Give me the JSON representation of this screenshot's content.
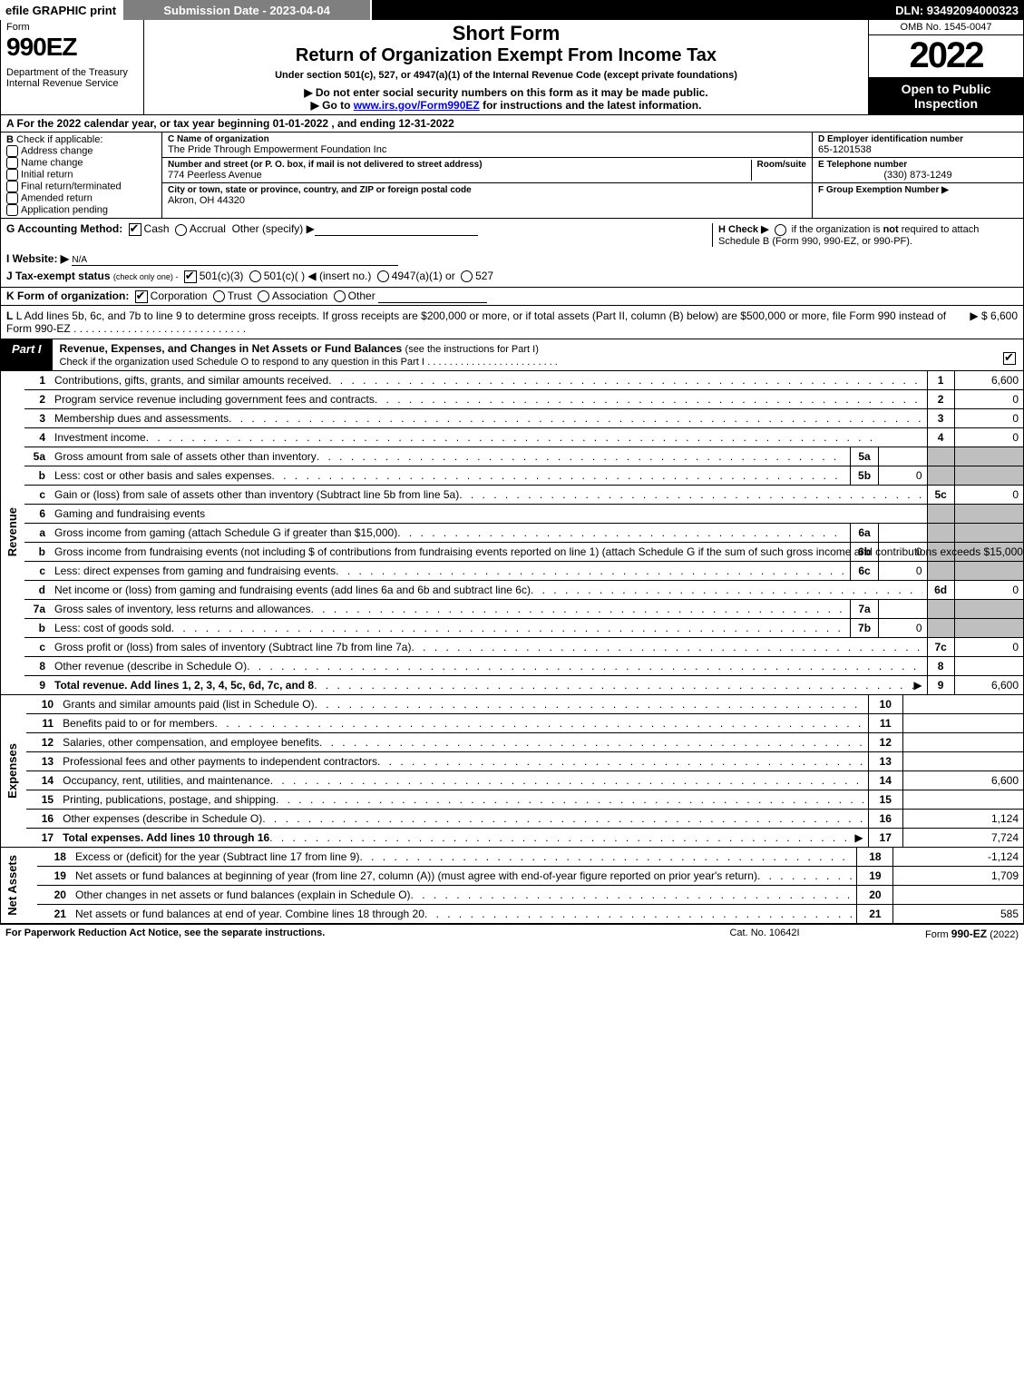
{
  "topbar": {
    "efile": "efile GRAPHIC print",
    "submission": "Submission Date - 2023-04-04",
    "dln": "DLN: 93492094000323"
  },
  "header": {
    "form_word": "Form",
    "form_num": "990EZ",
    "dept": "Department of the Treasury\nInternal Revenue Service",
    "title1": "Short Form",
    "title2": "Return of Organization Exempt From Income Tax",
    "subtitle": "Under section 501(c), 527, or 4947(a)(1) of the Internal Revenue Code (except private foundations)",
    "warn1": "▶ Do not enter social security numbers on this form as it may be made public.",
    "warn2_pre": "▶ Go to ",
    "warn2_link": "www.irs.gov/Form990EZ",
    "warn2_post": " for instructions and the latest information.",
    "omb": "OMB No. 1545-0047",
    "year": "2022",
    "open_public": "Open to Public Inspection"
  },
  "lineA": "A  For the 2022 calendar year, or tax year beginning 01-01-2022 , and ending 12-31-2022",
  "B": {
    "label": "B",
    "text": "Check if applicable:",
    "items": [
      "Address change",
      "Name change",
      "Initial return",
      "Final return/terminated",
      "Amended return",
      "Application pending"
    ]
  },
  "C": {
    "name_label": "C Name of organization",
    "name": "The Pride Through Empowerment Foundation Inc",
    "street_label": "Number and street (or P. O. box, if mail is not delivered to street address)",
    "roomsuite_label": "Room/suite",
    "street": "774 Peerless Avenue",
    "city_label": "City or town, state or province, country, and ZIP or foreign postal code",
    "city": "Akron, OH  44320"
  },
  "D": {
    "ein_label": "D Employer identification number",
    "ein": "65-1201538",
    "phone_label": "E Telephone number",
    "phone": "(330) 873-1249",
    "group_label": "F Group Exemption Number   ▶"
  },
  "G": {
    "label": "G Accounting Method:",
    "cash": "Cash",
    "accrual": "Accrual",
    "other": "Other (specify) ▶"
  },
  "H": {
    "text": "H  Check ▶",
    "rest": "if the organization is not required to attach Schedule B (Form 990, 990-EZ, or 990-PF)."
  },
  "I": {
    "label": "I Website: ▶",
    "value": "N/A"
  },
  "J": {
    "label": "J Tax-exempt status",
    "small": "(check only one) -",
    "o501c3": "501(c)(3)",
    "o501c": "501(c)(  ) ◀ (insert no.)",
    "o4947": "4947(a)(1) or",
    "o527": "527"
  },
  "K": {
    "label": "K Form of organization:",
    "opts": [
      "Corporation",
      "Trust",
      "Association",
      "Other"
    ]
  },
  "L": {
    "text": "L Add lines 5b, 6c, and 7b to line 9 to determine gross receipts. If gross receipts are $200,000 or more, or if total assets (Part II, column (B) below) are $500,000 or more, file Form 990 instead of Form 990-EZ",
    "amount": "▶ $ 6,600"
  },
  "part1": {
    "tab": "Part I",
    "title": "Revenue, Expenses, and Changes in Net Assets or Fund Balances",
    "title_paren": "(see the instructions for Part I)",
    "subtitle": "Check if the organization used Schedule O to respond to any question in this Part I"
  },
  "sidelabels": {
    "revenue": "Revenue",
    "expenses": "Expenses",
    "netassets": "Net Assets"
  },
  "lines_revenue": [
    {
      "n": "1",
      "desc": "Contributions, gifts, grants, and similar amounts received",
      "box": "1",
      "amt": "6,600"
    },
    {
      "n": "2",
      "desc": "Program service revenue including government fees and contracts",
      "box": "2",
      "amt": "0"
    },
    {
      "n": "3",
      "desc": "Membership dues and assessments",
      "box": "3",
      "amt": "0"
    },
    {
      "n": "4",
      "desc": "Investment income",
      "box": "4",
      "amt": "0"
    },
    {
      "n": "5a",
      "desc": "Gross amount from sale of assets other than inventory",
      "sub": "5a",
      "subamt": ""
    },
    {
      "n": "b",
      "desc": "Less: cost or other basis and sales expenses",
      "sub": "5b",
      "subamt": "0"
    },
    {
      "n": "c",
      "desc": "Gain or (loss) from sale of assets other than inventory (Subtract line 5b from line 5a)",
      "box": "5c",
      "amt": "0"
    },
    {
      "n": "6",
      "desc": "Gaming and fundraising events"
    },
    {
      "n": "a",
      "desc": "Gross income from gaming (attach Schedule G if greater than $15,000)",
      "sub": "6a",
      "subamt": ""
    },
    {
      "n": "b",
      "desc": "Gross income from fundraising events (not including $                    of contributions from fundraising events reported on line 1) (attach Schedule G if the sum of such gross income and contributions exceeds $15,000)",
      "sub": "6b",
      "subamt": "0"
    },
    {
      "n": "c",
      "desc": "Less: direct expenses from gaming and fundraising events",
      "sub": "6c",
      "subamt": "0"
    },
    {
      "n": "d",
      "desc": "Net income or (loss) from gaming and fundraising events (add lines 6a and 6b and subtract line 6c)",
      "box": "6d",
      "amt": "0"
    },
    {
      "n": "7a",
      "desc": "Gross sales of inventory, less returns and allowances",
      "sub": "7a",
      "subamt": ""
    },
    {
      "n": "b",
      "desc": "Less: cost of goods sold",
      "sub": "7b",
      "subamt": "0"
    },
    {
      "n": "c",
      "desc": "Gross profit or (loss) from sales of inventory (Subtract line 7b from line 7a)",
      "box": "7c",
      "amt": "0"
    },
    {
      "n": "8",
      "desc": "Other revenue (describe in Schedule O)",
      "box": "8",
      "amt": ""
    },
    {
      "n": "9",
      "desc": "Total revenue. Add lines 1, 2, 3, 4, 5c, 6d, 7c, and 8",
      "box": "9",
      "amt": "6,600",
      "bold": true,
      "arrow": true
    }
  ],
  "lines_expenses": [
    {
      "n": "10",
      "desc": "Grants and similar amounts paid (list in Schedule O)",
      "box": "10",
      "amt": ""
    },
    {
      "n": "11",
      "desc": "Benefits paid to or for members",
      "box": "11",
      "amt": ""
    },
    {
      "n": "12",
      "desc": "Salaries, other compensation, and employee benefits",
      "box": "12",
      "amt": ""
    },
    {
      "n": "13",
      "desc": "Professional fees and other payments to independent contractors",
      "box": "13",
      "amt": ""
    },
    {
      "n": "14",
      "desc": "Occupancy, rent, utilities, and maintenance",
      "box": "14",
      "amt": "6,600"
    },
    {
      "n": "15",
      "desc": "Printing, publications, postage, and shipping",
      "box": "15",
      "amt": ""
    },
    {
      "n": "16",
      "desc": "Other expenses (describe in Schedule O)",
      "box": "16",
      "amt": "1,124"
    },
    {
      "n": "17",
      "desc": "Total expenses. Add lines 10 through 16",
      "box": "17",
      "amt": "7,724",
      "bold": true,
      "arrow": true
    }
  ],
  "lines_netassets": [
    {
      "n": "18",
      "desc": "Excess or (deficit) for the year (Subtract line 17 from line 9)",
      "box": "18",
      "amt": "-1,124"
    },
    {
      "n": "19",
      "desc": "Net assets or fund balances at beginning of year (from line 27, column (A)) (must agree with end-of-year figure reported on prior year's return)",
      "box": "19",
      "amt": "1,709"
    },
    {
      "n": "20",
      "desc": "Other changes in net assets or fund balances (explain in Schedule O)",
      "box": "20",
      "amt": ""
    },
    {
      "n": "21",
      "desc": "Net assets or fund balances at end of year. Combine lines 18 through 20",
      "box": "21",
      "amt": "585"
    }
  ],
  "footer": {
    "left": "For Paperwork Reduction Act Notice, see the separate instructions.",
    "mid": "Cat. No. 10642I",
    "right_pre": "Form ",
    "right_form": "990-EZ",
    "right_post": " (2022)"
  },
  "colors": {
    "black": "#000000",
    "white": "#ffffff",
    "grey_header": "#7f7f7f",
    "grey_cell": "#bfbfbf",
    "link": "#0000ee"
  }
}
